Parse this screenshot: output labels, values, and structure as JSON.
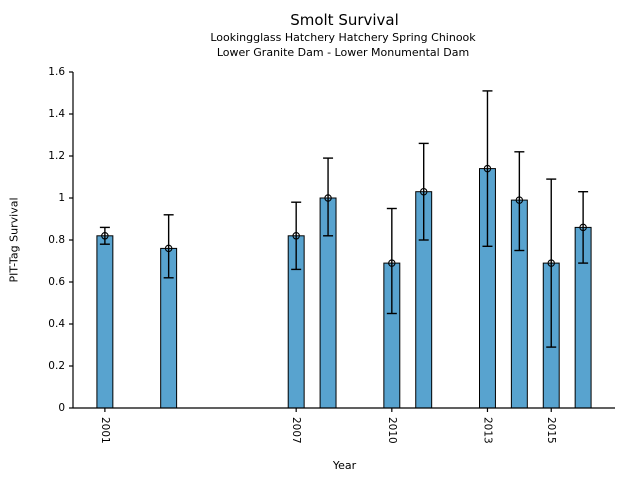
{
  "chart_data": {
    "type": "bar",
    "title": "Smolt Survival",
    "subtitle1": "Lookingglass Hatchery Hatchery Spring Chinook",
    "subtitle2": "Lower Granite Dam - Lower Monumental Dam",
    "xlabel": "Year",
    "ylabel": "PIT-Tag Survival",
    "xlim": [
      2000,
      2017
    ],
    "ylim": [
      0,
      1.6
    ],
    "x": [
      2001,
      2003,
      2007,
      2008,
      2010,
      2011,
      2013,
      2014,
      2015,
      2016
    ],
    "values": [
      0.82,
      0.76,
      0.82,
      1.0,
      0.69,
      1.03,
      1.14,
      0.99,
      0.69,
      0.86
    ],
    "error_low": [
      0.78,
      0.62,
      0.66,
      0.82,
      0.45,
      0.8,
      0.77,
      0.75,
      0.29,
      0.69
    ],
    "error_high": [
      0.86,
      0.92,
      0.98,
      1.19,
      0.95,
      1.26,
      1.51,
      1.22,
      1.09,
      1.03
    ],
    "xticks": [
      2001,
      2007,
      2010,
      2013,
      2015
    ],
    "xtick_labels": [
      "2001",
      "2007",
      "2010",
      "2013",
      "2015"
    ],
    "ytick_values": [
      0,
      0.2,
      0.4,
      0.6,
      0.8,
      1.0,
      1.2,
      1.4,
      1.6
    ],
    "ytick_labels": [
      "0",
      "0.2",
      "0.4",
      "0.6",
      "0.8",
      "1",
      "1.2",
      "1.4",
      "1.6"
    ],
    "bar_width_years": 0.5,
    "legend": null,
    "grid": false,
    "colors": {
      "bar_fill": "#58A3CF",
      "bar_edge": "#000000",
      "error_bar": "#000000",
      "marker_edge": "#000000",
      "axis": "#000000",
      "text": "#000000",
      "background": "#ffffff"
    }
  }
}
